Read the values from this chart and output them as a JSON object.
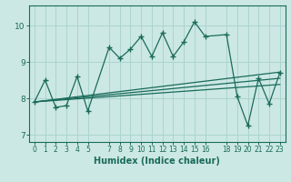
{
  "xlabel": "Humidex (Indice chaleur)",
  "bg_color": "#cce8e4",
  "grid_color": "#aad4ce",
  "line_color": "#1a6b5a",
  "xlim": [
    -0.5,
    23.5
  ],
  "ylim": [
    6.8,
    10.55
  ],
  "xticks": [
    0,
    1,
    2,
    3,
    4,
    5,
    7,
    8,
    9,
    10,
    11,
    12,
    13,
    14,
    15,
    16,
    18,
    19,
    20,
    21,
    22,
    23
  ],
  "yticks": [
    7,
    8,
    9,
    10
  ],
  "data_x": [
    0,
    1,
    2,
    3,
    4,
    5,
    7,
    8,
    9,
    10,
    11,
    12,
    13,
    14,
    15,
    16,
    18,
    19,
    20,
    21,
    22,
    23
  ],
  "data_y": [
    7.9,
    8.5,
    7.75,
    7.8,
    8.6,
    7.65,
    9.4,
    9.1,
    9.35,
    9.7,
    9.15,
    9.8,
    9.15,
    9.55,
    10.1,
    9.7,
    9.75,
    8.05,
    7.25,
    8.55,
    7.85,
    8.7
  ],
  "trend1_x": [
    0,
    23
  ],
  "trend1_y": [
    7.9,
    8.72
  ],
  "trend2_x": [
    0,
    23
  ],
  "trend2_y": [
    7.9,
    8.55
  ],
  "trend3_x": [
    0,
    23
  ],
  "trend3_y": [
    7.9,
    8.38
  ]
}
